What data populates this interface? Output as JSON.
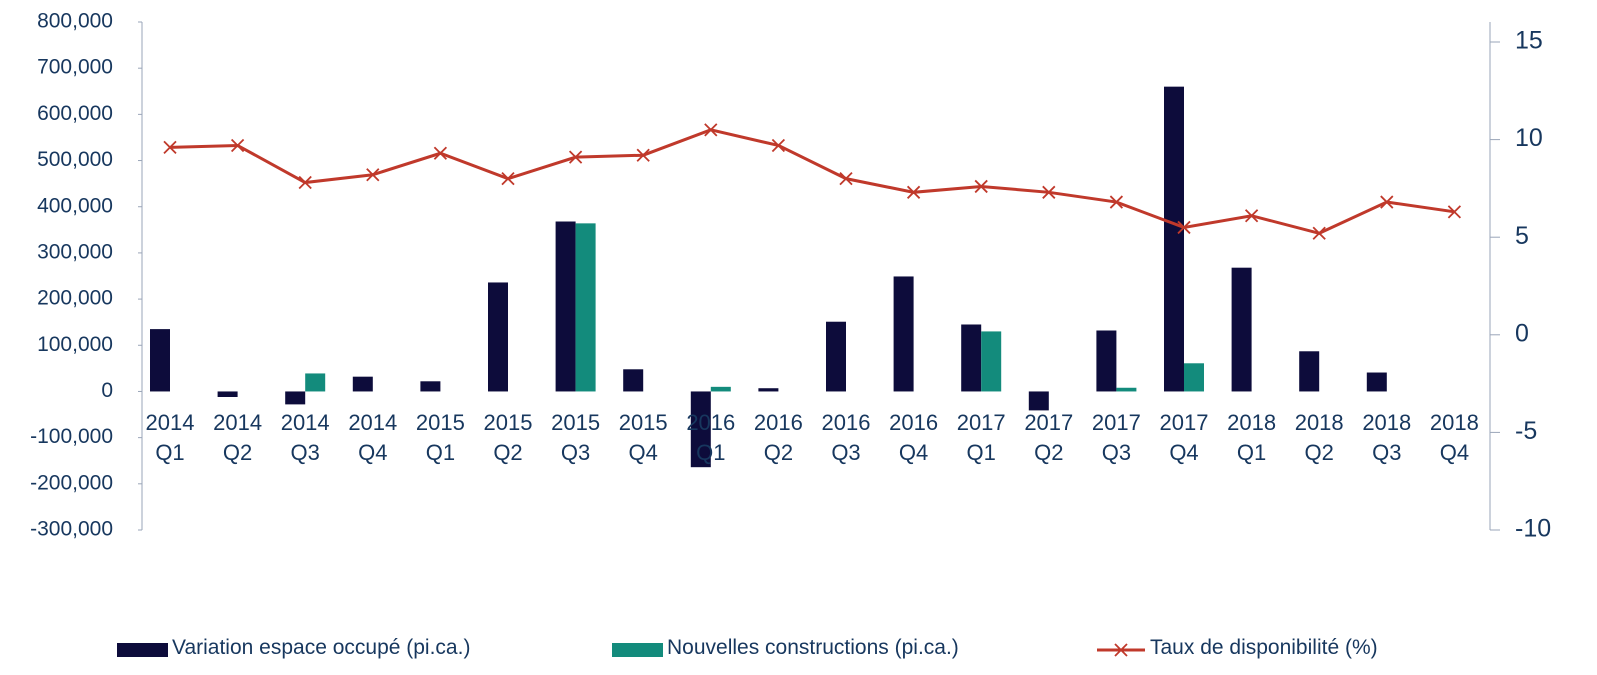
{
  "chart_data": {
    "type": "bar-line",
    "categories": [
      "2014 Q1",
      "2014 Q2",
      "2014 Q3",
      "2014 Q4",
      "2015 Q1",
      "2015 Q2",
      "2015 Q3",
      "2015 Q4",
      "2016 Q1",
      "2016 Q2",
      "2016 Q3",
      "2016 Q4",
      "2017 Q1",
      "2017 Q2",
      "2017 Q3",
      "2017 Q4",
      "2018 Q1",
      "2018 Q2",
      "2018 Q3",
      "2018 Q4"
    ],
    "series": [
      {
        "name": "Variation espace occupé (pi.ca.)",
        "type": "bar",
        "color": "#0d0c3b",
        "values": [
          135000,
          -12000,
          -28000,
          32000,
          22000,
          236000,
          368000,
          48000,
          -164000,
          7000,
          151000,
          249000,
          145000,
          -41000,
          132000,
          660000,
          268000,
          87000,
          41000,
          null
        ]
      },
      {
        "name": "Nouvelles constructions (pi.ca.)",
        "type": "bar",
        "color": "#138b7c",
        "values": [
          null,
          null,
          39000,
          null,
          null,
          null,
          364000,
          null,
          10000,
          null,
          null,
          null,
          130000,
          null,
          8000,
          61000,
          null,
          null,
          null,
          null
        ]
      },
      {
        "name": "Taux de disponibilité  (%)",
        "type": "line",
        "axis": "y2",
        "color": "#c0392b",
        "values": [
          9.6,
          9.7,
          7.8,
          8.2,
          9.3,
          8.0,
          9.1,
          9.2,
          10.5,
          9.7,
          8.0,
          7.3,
          7.6,
          7.3,
          6.8,
          5.5,
          6.1,
          5.2,
          6.8,
          6.3
        ]
      }
    ],
    "ylim": [
      -300000,
      800000
    ],
    "yticks": [
      {
        "value": -300000,
        "label": "-300,000"
      },
      {
        "value": -200000,
        "label": "-200,000"
      },
      {
        "value": -100000,
        "label": "-100,000"
      },
      0,
      {
        "value": 100000,
        "label": "100,000"
      },
      {
        "value": 200000,
        "label": "200,000"
      },
      {
        "value": 300000,
        "label": "300,000"
      },
      {
        "value": 400000,
        "label": "400,000"
      },
      {
        "value": 500000,
        "label": "500,000"
      },
      {
        "value": 600000,
        "label": "600,000"
      },
      {
        "value": 700000,
        "label": "700,000"
      },
      {
        "value": 800000,
        "label": "800,000"
      }
    ],
    "y2lim": [
      -10,
      15
    ],
    "y2ticks": [
      -10,
      -5,
      0,
      5,
      10,
      15
    ],
    "legend": "bottom"
  }
}
